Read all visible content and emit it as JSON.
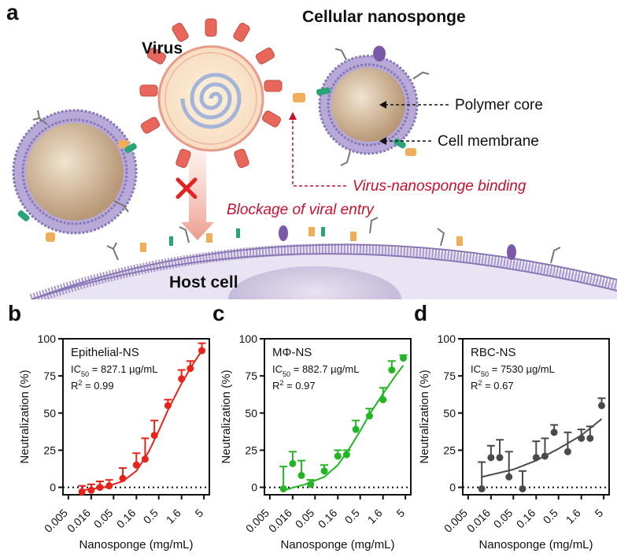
{
  "panel_labels": {
    "a": "a",
    "b": "b",
    "c": "c",
    "d": "d"
  },
  "schematic": {
    "virus": "Virus",
    "nanosponge": "Cellular nanosponge",
    "polymer_core": "Polymer core",
    "cell_membrane": "Cell membrane",
    "binding": "Virus-nanosponge binding",
    "blockage": "Blockage of viral entry",
    "host_cell": "Host cell"
  },
  "colors": {
    "epithelial": "#e8231b",
    "macrophage": "#23b523",
    "rbc": "#4a4a4a",
    "annotation_red": "#c8102e",
    "membrane": "#a594c9",
    "core": "#c8ab8a"
  },
  "chart_data": [
    {
      "type": "scatter",
      "panel": "b",
      "legend": "Epithelial-NS",
      "ic50": "IC50 = 827.1 µg/mL",
      "r2": "R2 = 0.99",
      "xlabel": "Nanosponge (mg/mL)",
      "ylabel": "Neutralization (%)",
      "xscale": "log",
      "xlim": [
        0.005,
        5
      ],
      "ylim": [
        -5,
        100
      ],
      "xticks": [
        "0.005",
        "0.016",
        "0.05",
        "0.16",
        "0.5",
        "1.6",
        "5"
      ],
      "yticks": [
        "0",
        "25",
        "50",
        "75",
        "100"
      ],
      "color": "#e8231b",
      "x": [
        0.01,
        0.016,
        0.025,
        0.04,
        0.08,
        0.16,
        0.25,
        0.4,
        0.8,
        1.6,
        2.5,
        4.5
      ],
      "y": [
        -3,
        -2,
        0,
        1,
        6,
        15,
        19,
        35,
        55,
        73,
        80,
        92
      ],
      "err": [
        4,
        4,
        4,
        4,
        7,
        8,
        14,
        10,
        4,
        6,
        5,
        5
      ],
      "curve": [
        [
          0.01,
          -2
        ],
        [
          0.03,
          0
        ],
        [
          0.08,
          4
        ],
        [
          0.16,
          11
        ],
        [
          0.3,
          24
        ],
        [
          0.5,
          38
        ],
        [
          0.8,
          52
        ],
        [
          1.6,
          70
        ],
        [
          3,
          84
        ],
        [
          4.5,
          92
        ]
      ]
    },
    {
      "type": "scatter",
      "panel": "c",
      "legend": "MΦ-NS",
      "ic50": "IC50 = 882.7 µg/mL",
      "r2": "R2 = 0.97",
      "xlabel": "Nanosponge (mg/mL)",
      "ylabel": "Neutralization (%)",
      "xscale": "log",
      "xlim": [
        0.005,
        5
      ],
      "ylim": [
        -5,
        100
      ],
      "xticks": [
        "0.005",
        "0.016",
        "0.05",
        "0.16",
        "0.5",
        "1.6",
        "5"
      ],
      "yticks": [
        "0",
        "25",
        "50",
        "75",
        "100"
      ],
      "color": "#23b523",
      "x": [
        0.01,
        0.016,
        0.025,
        0.04,
        0.08,
        0.16,
        0.25,
        0.4,
        0.8,
        1.6,
        2.5,
        4.5
      ],
      "y": [
        -1,
        16,
        8,
        2,
        11,
        21,
        22,
        39,
        48,
        59,
        79,
        87
      ],
      "err": [
        15,
        8,
        10,
        3,
        4,
        4,
        3,
        6,
        5,
        8,
        6,
        2
      ],
      "curve": [
        [
          0.01,
          -2
        ],
        [
          0.03,
          2
        ],
        [
          0.08,
          7
        ],
        [
          0.16,
          15
        ],
        [
          0.3,
          27
        ],
        [
          0.5,
          38
        ],
        [
          0.8,
          49
        ],
        [
          1.6,
          63
        ],
        [
          3,
          75
        ],
        [
          4.5,
          82
        ]
      ]
    },
    {
      "type": "scatter",
      "panel": "d",
      "legend": "RBC-NS",
      "ic50": "IC50 = 7530 µg/mL",
      "r2": "R2 = 0.67",
      "xlabel": "Nanosponge (mg/mL)",
      "ylabel": "Neutralization (%)",
      "xscale": "log",
      "xlim": [
        0.005,
        5
      ],
      "ylim": [
        -5,
        100
      ],
      "xticks": [
        "0.005",
        "0.016",
        "0.05",
        "0.16",
        "0.5",
        "1.6",
        "5"
      ],
      "yticks": [
        "0",
        "25",
        "50",
        "75",
        "100"
      ],
      "color": "#4a4a4a",
      "x": [
        0.01,
        0.016,
        0.025,
        0.04,
        0.08,
        0.16,
        0.25,
        0.4,
        0.8,
        1.6,
        2.5,
        4.5
      ],
      "y": [
        -1,
        20,
        20,
        7,
        -1,
        20,
        21,
        37,
        24,
        33,
        33,
        55
      ],
      "err": [
        18,
        8,
        12,
        17,
        12,
        11,
        12,
        5,
        13,
        6,
        8,
        5
      ],
      "curve": [
        [
          0.01,
          7
        ],
        [
          0.05,
          12
        ],
        [
          0.16,
          18
        ],
        [
          0.5,
          26
        ],
        [
          1.6,
          35
        ],
        [
          4.5,
          46
        ]
      ]
    }
  ]
}
